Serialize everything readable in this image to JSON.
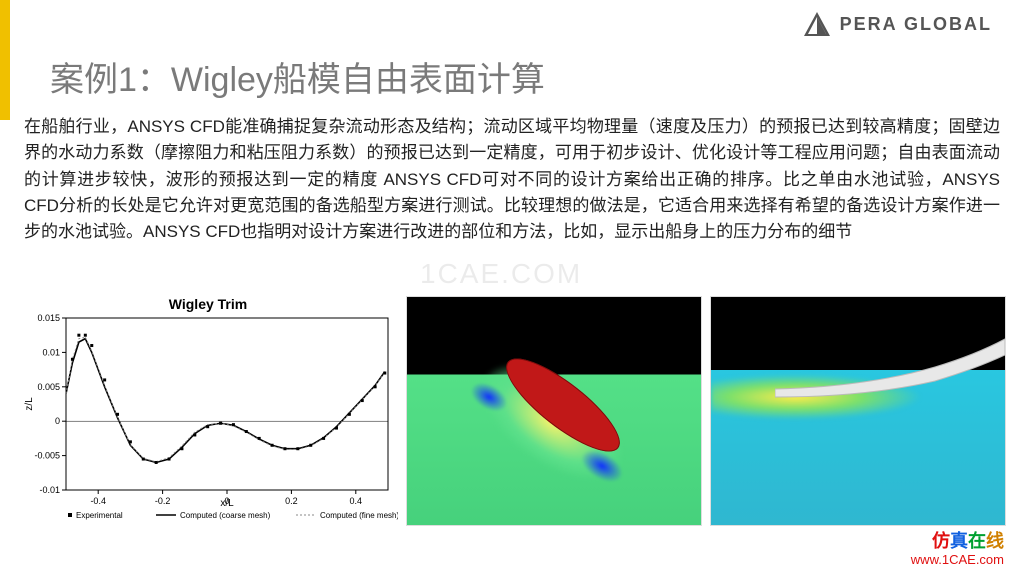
{
  "logo": {
    "text": "PERA GLOBAL",
    "triangle_color": "#555555"
  },
  "title": "案例1：Wigley船模自由表面计算",
  "paragraph": "在船舶行业，ANSYS CFD能准确捕捉复杂流动形态及结构；流动区域平均物理量（速度及压力）的预报已达到较高精度；固壁边界的水动力系数（摩擦阻力和粘压阻力系数）的预报已达到一定精度，可用于初步设计、优化设计等工程应用问题；自由表面流动的计算进步较快，波形的预报达到一定的精度 ANSYS CFD可对不同的设计方案给出正确的排序。比之单由水池试验，ANSYS CFD分析的长处是它允许对更宽范围的备选船型方案进行测试。比较理想的做法是，它适合用来选择有希望的备选设计方案作进一步的水池试验。ANSYS CFD也指明对设计方案进行改进的部位和方法，比如，显示出船身上的压力分布的细节",
  "watermark": "1CAE.COM",
  "chart": {
    "type": "line",
    "title": "Wigley Trim",
    "xlabel": "x/L",
    "ylabel": "z/L",
    "xlim": [
      -0.5,
      0.5
    ],
    "ylim": [
      -0.01,
      0.015
    ],
    "xticks": [
      -0.4,
      -0.2,
      0,
      0.2,
      0.4
    ],
    "yticks": [
      -0.01,
      -0.005,
      0,
      0.005,
      0.01,
      0.015
    ],
    "background_color": "#ffffff",
    "axis_color": "#000000",
    "title_fontsize": 14,
    "label_fontsize": 10,
    "tick_fontsize": 9,
    "series": {
      "experimental": {
        "label": "Experimental",
        "marker": "square",
        "marker_size": 3,
        "color": "#000000",
        "points": [
          [
            -0.48,
            0.009
          ],
          [
            -0.46,
            0.0125
          ],
          [
            -0.44,
            0.0125
          ],
          [
            -0.42,
            0.011
          ],
          [
            -0.38,
            0.006
          ],
          [
            -0.34,
            0.001
          ],
          [
            -0.3,
            -0.003
          ],
          [
            -0.26,
            -0.0055
          ],
          [
            -0.22,
            -0.006
          ],
          [
            -0.18,
            -0.0055
          ],
          [
            -0.14,
            -0.004
          ],
          [
            -0.1,
            -0.002
          ],
          [
            -0.06,
            -0.0008
          ],
          [
            -0.02,
            -0.0003
          ],
          [
            0.02,
            -0.0005
          ],
          [
            0.06,
            -0.0015
          ],
          [
            0.1,
            -0.0025
          ],
          [
            0.14,
            -0.0035
          ],
          [
            0.18,
            -0.004
          ],
          [
            0.22,
            -0.004
          ],
          [
            0.26,
            -0.0035
          ],
          [
            0.3,
            -0.0025
          ],
          [
            0.34,
            -0.001
          ],
          [
            0.38,
            0.001
          ],
          [
            0.42,
            0.003
          ],
          [
            0.46,
            0.005
          ],
          [
            0.49,
            0.007
          ]
        ]
      },
      "coarse": {
        "label": "Computed (coarse mesh)",
        "style": "solid",
        "width": 1.6,
        "color": "#000000",
        "points": [
          [
            -0.5,
            0.004
          ],
          [
            -0.48,
            0.0085
          ],
          [
            -0.46,
            0.0115
          ],
          [
            -0.44,
            0.012
          ],
          [
            -0.42,
            0.01
          ],
          [
            -0.38,
            0.005
          ],
          [
            -0.34,
            0.0005
          ],
          [
            -0.3,
            -0.0035
          ],
          [
            -0.26,
            -0.0055
          ],
          [
            -0.22,
            -0.006
          ],
          [
            -0.18,
            -0.0055
          ],
          [
            -0.14,
            -0.0038
          ],
          [
            -0.1,
            -0.0018
          ],
          [
            -0.06,
            -0.0006
          ],
          [
            -0.02,
            -0.0003
          ],
          [
            0.02,
            -0.0006
          ],
          [
            0.06,
            -0.0015
          ],
          [
            0.1,
            -0.0026
          ],
          [
            0.14,
            -0.0035
          ],
          [
            0.18,
            -0.004
          ],
          [
            0.22,
            -0.004
          ],
          [
            0.26,
            -0.0035
          ],
          [
            0.3,
            -0.0024
          ],
          [
            0.34,
            -0.0008
          ],
          [
            0.38,
            0.0012
          ],
          [
            0.42,
            0.0032
          ],
          [
            0.46,
            0.0052
          ],
          [
            0.49,
            0.0072
          ]
        ]
      },
      "fine": {
        "label": "Computed (fine mesh)",
        "style": "dotted",
        "width": 1,
        "color": "#888888",
        "points": [
          [
            -0.5,
            0.004
          ],
          [
            -0.48,
            0.009
          ],
          [
            -0.46,
            0.012
          ],
          [
            -0.44,
            0.0122
          ],
          [
            -0.42,
            0.0102
          ],
          [
            -0.38,
            0.0052
          ],
          [
            -0.34,
            0.0006
          ],
          [
            -0.3,
            -0.0034
          ],
          [
            -0.26,
            -0.0054
          ],
          [
            -0.22,
            -0.0059
          ],
          [
            -0.18,
            -0.0053
          ],
          [
            -0.14,
            -0.0036
          ],
          [
            -0.1,
            -0.0016
          ],
          [
            -0.06,
            -0.0005
          ],
          [
            -0.02,
            -0.0003
          ],
          [
            0.02,
            -0.0007
          ],
          [
            0.06,
            -0.0016
          ],
          [
            0.1,
            -0.0027
          ],
          [
            0.14,
            -0.0036
          ],
          [
            0.18,
            -0.0041
          ],
          [
            0.22,
            -0.0041
          ],
          [
            0.26,
            -0.0036
          ],
          [
            0.3,
            -0.0025
          ],
          [
            0.34,
            -0.0009
          ],
          [
            0.38,
            0.0011
          ],
          [
            0.42,
            0.0031
          ],
          [
            0.46,
            0.0051
          ],
          [
            0.49,
            0.0071
          ]
        ]
      }
    }
  },
  "cfd1": {
    "description": "Wigley hull free-surface CFD top/iso view",
    "plane_color": "#46d17c",
    "hull_color": "#c11818",
    "low_pressure_color": "#1030ff",
    "wake_color": "#f7f36b",
    "background": "#000000"
  },
  "cfd2": {
    "description": "Wigley hull free-surface CFD side view",
    "plane_color": "#2fb7d0",
    "hull_color": "#eeeeee",
    "wake_color": "#ffec4a",
    "background": "#000000"
  },
  "footer": {
    "brand_cn": "仿真在线",
    "url": "www.1CAE.com"
  }
}
